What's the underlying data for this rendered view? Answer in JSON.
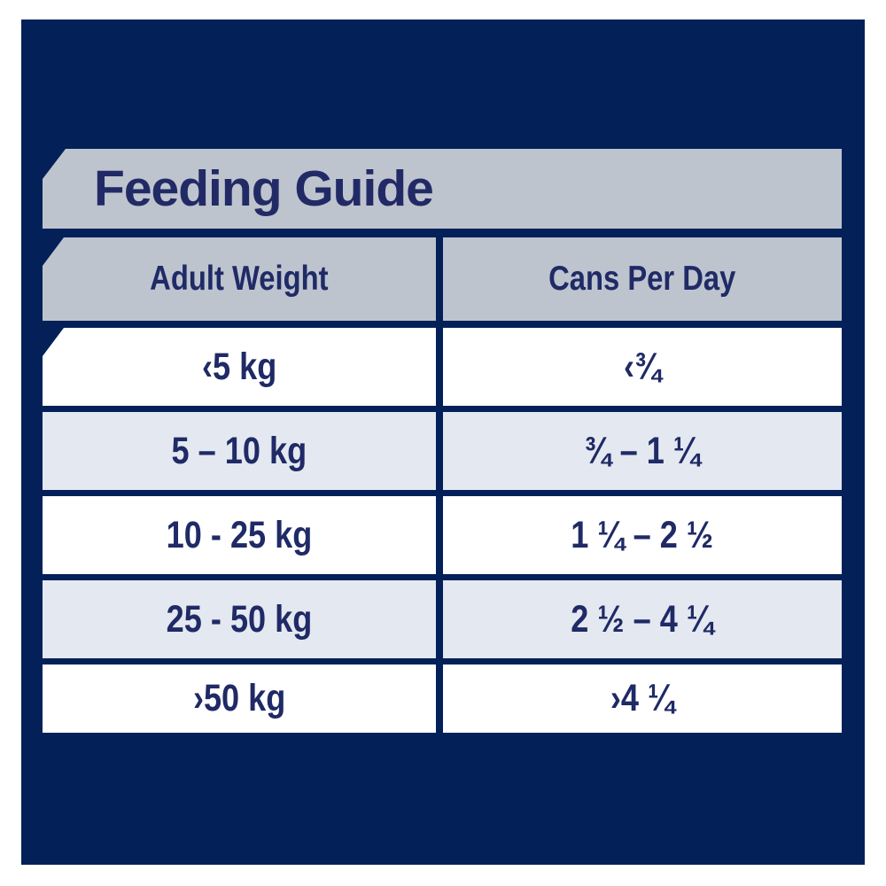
{
  "colors": {
    "page_bg": "#ffffff",
    "panel_navy": "#032158",
    "banner_gray": "#bec4ce",
    "row_alt_bg": "#e4e8f0",
    "row_white_bg": "#ffffff",
    "text_navy": "#1f2a66"
  },
  "title": "Feeding Guide",
  "table": {
    "columns": [
      "Adult Weight",
      "Cans Per Day"
    ],
    "rows": [
      {
        "weight": "‹5 kg",
        "cans": "‹¾"
      },
      {
        "weight": "5 – 10 kg",
        "cans": "¾ – 1 ¼"
      },
      {
        "weight": "10 - 25 kg",
        "cans": "1 ¼ – 2 ½"
      },
      {
        "weight": "25 - 50 kg",
        "cans": "2 ½ – 4 ¼"
      },
      {
        "weight": "›50 kg",
        "cans": "›4 ¼"
      }
    ]
  },
  "chart_data": {
    "type": "table",
    "title": "Feeding Guide",
    "columns": [
      "Adult Weight",
      "Cans Per Day"
    ],
    "rows": [
      [
        "‹5 kg",
        "‹¾"
      ],
      [
        "5 – 10 kg",
        "¾ – 1 ¼"
      ],
      [
        "10 - 25 kg",
        "1 ¼ – 2 ½"
      ],
      [
        "25 - 50 kg",
        "2 ½ – 4 ¼"
      ],
      [
        "›50 kg",
        "›4 ¼"
      ]
    ]
  }
}
